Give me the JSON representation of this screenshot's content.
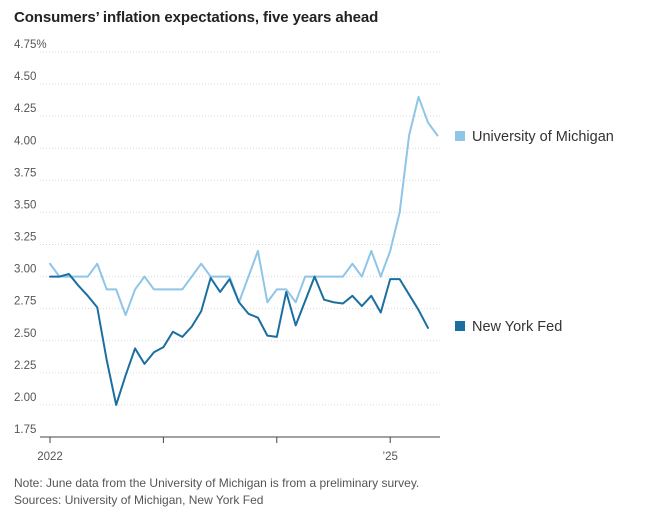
{
  "chart_data": {
    "type": "line",
    "title": "Consumers’ inflation expectations, five years ahead",
    "y_ticks": [
      {
        "value": 4.75,
        "label": "4.75%"
      },
      {
        "value": 4.5,
        "label": "4.50"
      },
      {
        "value": 4.25,
        "label": "4.25"
      },
      {
        "value": 4.0,
        "label": "4.00"
      },
      {
        "value": 3.75,
        "label": "3.75"
      },
      {
        "value": 3.5,
        "label": "3.50"
      },
      {
        "value": 3.25,
        "label": "3.25"
      },
      {
        "value": 3.0,
        "label": "3.00"
      },
      {
        "value": 2.75,
        "label": "2.75"
      },
      {
        "value": 2.5,
        "label": "2.50"
      },
      {
        "value": 2.25,
        "label": "2.25"
      },
      {
        "value": 2.0,
        "label": "2.00"
      },
      {
        "value": 1.75,
        "label": "1.75"
      }
    ],
    "ylim": [
      1.75,
      4.75
    ],
    "x_ticks": [
      {
        "value": "2022-01",
        "label": "2022"
      },
      {
        "value": "2023-01",
        "label": ""
      },
      {
        "value": "2024-01",
        "label": ""
      },
      {
        "value": "2025-01",
        "label": "’25"
      }
    ],
    "xlim": [
      "2022-01",
      "2025-06"
    ],
    "grid": "horizontal",
    "legend": "right-of-lines",
    "series": [
      {
        "name": "University of Michigan",
        "color": "#8ec5e8",
        "points": [
          [
            "2022-01",
            3.1
          ],
          [
            "2022-02",
            3.0
          ],
          [
            "2022-03",
            3.0
          ],
          [
            "2022-04",
            3.0
          ],
          [
            "2022-05",
            3.0
          ],
          [
            "2022-06",
            3.1
          ],
          [
            "2022-07",
            2.9
          ],
          [
            "2022-08",
            2.9
          ],
          [
            "2022-09",
            2.7
          ],
          [
            "2022-10",
            2.9
          ],
          [
            "2022-11",
            3.0
          ],
          [
            "2022-12",
            2.9
          ],
          [
            "2023-01",
            2.9
          ],
          [
            "2023-02",
            2.9
          ],
          [
            "2023-03",
            2.9
          ],
          [
            "2023-04",
            3.0
          ],
          [
            "2023-05",
            3.1
          ],
          [
            "2023-06",
            3.0
          ],
          [
            "2023-07",
            3.0
          ],
          [
            "2023-08",
            3.0
          ],
          [
            "2023-09",
            2.8
          ],
          [
            "2023-10",
            3.0
          ],
          [
            "2023-11",
            3.2
          ],
          [
            "2023-12",
            2.8
          ],
          [
            "2024-01",
            2.9
          ],
          [
            "2024-02",
            2.9
          ],
          [
            "2024-03",
            2.8
          ],
          [
            "2024-04",
            3.0
          ],
          [
            "2024-05",
            3.0
          ],
          [
            "2024-06",
            3.0
          ],
          [
            "2024-07",
            3.0
          ],
          [
            "2024-08",
            3.0
          ],
          [
            "2024-09",
            3.1
          ],
          [
            "2024-10",
            3.0
          ],
          [
            "2024-11",
            3.2
          ],
          [
            "2024-12",
            3.0
          ],
          [
            "2025-01",
            3.2
          ],
          [
            "2025-02",
            3.5
          ],
          [
            "2025-03",
            4.1
          ],
          [
            "2025-04",
            4.4
          ],
          [
            "2025-05",
            4.2
          ],
          [
            "2025-06",
            4.1
          ]
        ]
      },
      {
        "name": "New York Fed",
        "color": "#1b6fa0",
        "points": [
          [
            "2022-01",
            3.0
          ],
          [
            "2022-02",
            3.0
          ],
          [
            "2022-03",
            3.02
          ],
          [
            "2022-04",
            2.93
          ],
          [
            "2022-05",
            2.85
          ],
          [
            "2022-06",
            2.76
          ],
          [
            "2022-07",
            2.35
          ],
          [
            "2022-08",
            2.0
          ],
          [
            "2022-09",
            2.23
          ],
          [
            "2022-10",
            2.44
          ],
          [
            "2022-11",
            2.32
          ],
          [
            "2022-12",
            2.41
          ],
          [
            "2023-01",
            2.45
          ],
          [
            "2023-02",
            2.57
          ],
          [
            "2023-03",
            2.53
          ],
          [
            "2023-04",
            2.61
          ],
          [
            "2023-05",
            2.73
          ],
          [
            "2023-06",
            2.99
          ],
          [
            "2023-07",
            2.88
          ],
          [
            "2023-08",
            2.98
          ],
          [
            "2023-09",
            2.8
          ],
          [
            "2023-10",
            2.71
          ],
          [
            "2023-11",
            2.68
          ],
          [
            "2023-12",
            2.54
          ],
          [
            "2024-01",
            2.53
          ],
          [
            "2024-02",
            2.88
          ],
          [
            "2024-03",
            2.62
          ],
          [
            "2024-04",
            2.81
          ],
          [
            "2024-05",
            3.0
          ],
          [
            "2024-06",
            2.82
          ],
          [
            "2024-07",
            2.8
          ],
          [
            "2024-08",
            2.79
          ],
          [
            "2024-09",
            2.85
          ],
          [
            "2024-10",
            2.77
          ],
          [
            "2024-11",
            2.85
          ],
          [
            "2024-12",
            2.72
          ],
          [
            "2025-01",
            2.98
          ],
          [
            "2025-02",
            2.98
          ],
          [
            "2025-03",
            2.86
          ],
          [
            "2025-04",
            2.74
          ],
          [
            "2025-05",
            2.6
          ]
        ]
      }
    ]
  },
  "footer": {
    "note": "Note: June data from the University of Michigan is from a preliminary survey.",
    "sources": "Sources: University of Michigan, New York Fed"
  }
}
